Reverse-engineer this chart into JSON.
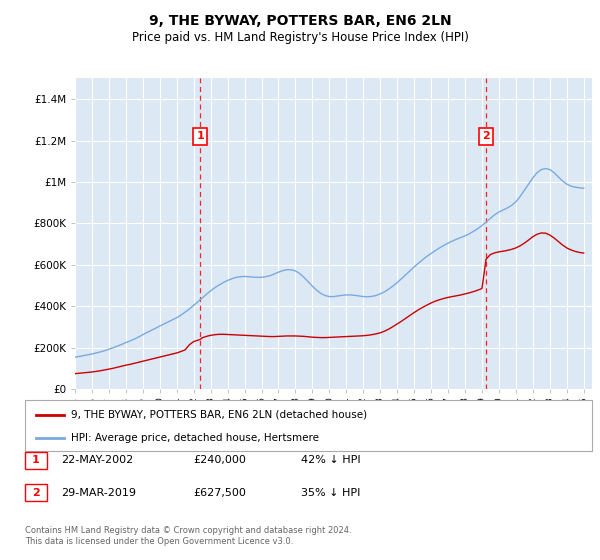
{
  "title": "9, THE BYWAY, POTTERS BAR, EN6 2LN",
  "subtitle": "Price paid vs. HM Land Registry's House Price Index (HPI)",
  "legend_line1": "9, THE BYWAY, POTTERS BAR, EN6 2LN (detached house)",
  "legend_line2": "HPI: Average price, detached house, Hertsmere",
  "footnote": "Contains HM Land Registry data © Crown copyright and database right 2024.\nThis data is licensed under the Open Government Licence v3.0.",
  "table_rows": [
    {
      "num": "1",
      "date": "22-MAY-2002",
      "price": "£240,000",
      "note": "42% ↓ HPI"
    },
    {
      "num": "2",
      "date": "29-MAR-2019",
      "price": "£627,500",
      "note": "35% ↓ HPI"
    }
  ],
  "transaction1_year": 2002.38,
  "transaction1_price": 240000,
  "transaction2_year": 2019.24,
  "transaction2_price": 627500,
  "background_color": "#dce9f5",
  "fig_bg_color": "#ffffff",
  "red_color": "#cc0000",
  "blue_color": "#7aaadd",
  "ylim": [
    0,
    1500000
  ],
  "yticks": [
    0,
    200000,
    400000,
    600000,
    800000,
    1000000,
    1200000,
    1400000
  ],
  "ytick_labels": [
    "£0",
    "£200K",
    "£400K",
    "£600K",
    "£800K",
    "£1M",
    "£1.2M",
    "£1.4M"
  ],
  "xlim_start": 1995,
  "xlim_end": 2025.5,
  "hpi_years": [
    1995.0,
    1995.25,
    1995.5,
    1995.75,
    1996.0,
    1996.25,
    1996.5,
    1996.75,
    1997.0,
    1997.25,
    1997.5,
    1997.75,
    1998.0,
    1998.25,
    1998.5,
    1998.75,
    1999.0,
    1999.25,
    1999.5,
    1999.75,
    2000.0,
    2000.25,
    2000.5,
    2000.75,
    2001.0,
    2001.25,
    2001.5,
    2001.75,
    2002.0,
    2002.25,
    2002.5,
    2002.75,
    2003.0,
    2003.25,
    2003.5,
    2003.75,
    2004.0,
    2004.25,
    2004.5,
    2004.75,
    2005.0,
    2005.25,
    2005.5,
    2005.75,
    2006.0,
    2006.25,
    2006.5,
    2006.75,
    2007.0,
    2007.25,
    2007.5,
    2007.75,
    2008.0,
    2008.25,
    2008.5,
    2008.75,
    2009.0,
    2009.25,
    2009.5,
    2009.75,
    2010.0,
    2010.25,
    2010.5,
    2010.75,
    2011.0,
    2011.25,
    2011.5,
    2011.75,
    2012.0,
    2012.25,
    2012.5,
    2012.75,
    2013.0,
    2013.25,
    2013.5,
    2013.75,
    2014.0,
    2014.25,
    2014.5,
    2014.75,
    2015.0,
    2015.25,
    2015.5,
    2015.75,
    2016.0,
    2016.25,
    2016.5,
    2016.75,
    2017.0,
    2017.25,
    2017.5,
    2017.75,
    2018.0,
    2018.25,
    2018.5,
    2018.75,
    2019.0,
    2019.25,
    2019.5,
    2019.75,
    2020.0,
    2020.25,
    2020.5,
    2020.75,
    2021.0,
    2021.25,
    2021.5,
    2021.75,
    2022.0,
    2022.25,
    2022.5,
    2022.75,
    2023.0,
    2023.25,
    2023.5,
    2023.75,
    2024.0,
    2024.25,
    2024.5,
    2024.75,
    2025.0
  ],
  "hpi_values": [
    155000,
    158000,
    162000,
    166000,
    170000,
    175000,
    180000,
    186000,
    193000,
    200000,
    208000,
    216000,
    225000,
    233000,
    242000,
    252000,
    263000,
    274000,
    284000,
    294000,
    305000,
    315000,
    325000,
    335000,
    345000,
    358000,
    372000,
    388000,
    405000,
    422000,
    440000,
    458000,
    475000,
    490000,
    503000,
    515000,
    525000,
    533000,
    540000,
    543000,
    544000,
    543000,
    541000,
    540000,
    540000,
    543000,
    548000,
    556000,
    565000,
    572000,
    577000,
    576000,
    571000,
    558000,
    540000,
    519000,
    497000,
    478000,
    462000,
    452000,
    447000,
    447000,
    450000,
    453000,
    455000,
    455000,
    453000,
    450000,
    447000,
    446000,
    448000,
    452000,
    460000,
    470000,
    483000,
    498000,
    515000,
    533000,
    552000,
    571000,
    590000,
    608000,
    625000,
    641000,
    655000,
    669000,
    682000,
    694000,
    705000,
    715000,
    724000,
    732000,
    740000,
    750000,
    762000,
    775000,
    790000,
    807000,
    825000,
    842000,
    855000,
    865000,
    875000,
    887000,
    905000,
    930000,
    960000,
    990000,
    1020000,
    1045000,
    1060000,
    1065000,
    1060000,
    1045000,
    1025000,
    1005000,
    990000,
    980000,
    975000,
    972000,
    970000
  ],
  "red_years": [
    1995.0,
    1995.25,
    1995.5,
    1995.75,
    1996.0,
    1996.25,
    1996.5,
    1996.75,
    1997.0,
    1997.25,
    1997.5,
    1997.75,
    1998.0,
    1998.25,
    1998.5,
    1998.75,
    1999.0,
    1999.25,
    1999.5,
    1999.75,
    2000.0,
    2000.25,
    2000.5,
    2000.75,
    2001.0,
    2001.25,
    2001.5,
    2001.75,
    2002.0,
    2002.38,
    2002.5,
    2002.75,
    2003.0,
    2003.25,
    2003.5,
    2003.75,
    2004.0,
    2004.25,
    2004.5,
    2004.75,
    2005.0,
    2005.25,
    2005.5,
    2005.75,
    2006.0,
    2006.25,
    2006.5,
    2006.75,
    2007.0,
    2007.25,
    2007.5,
    2007.75,
    2008.0,
    2008.25,
    2008.5,
    2008.75,
    2009.0,
    2009.25,
    2009.5,
    2009.75,
    2010.0,
    2010.25,
    2010.5,
    2010.75,
    2011.0,
    2011.25,
    2011.5,
    2011.75,
    2012.0,
    2012.25,
    2012.5,
    2012.75,
    2013.0,
    2013.25,
    2013.5,
    2013.75,
    2014.0,
    2014.25,
    2014.5,
    2014.75,
    2015.0,
    2015.25,
    2015.5,
    2015.75,
    2016.0,
    2016.25,
    2016.5,
    2016.75,
    2017.0,
    2017.25,
    2017.5,
    2017.75,
    2018.0,
    2018.25,
    2018.5,
    2018.75,
    2019.0,
    2019.24,
    2019.5,
    2019.75,
    2020.0,
    2020.25,
    2020.5,
    2020.75,
    2021.0,
    2021.25,
    2021.5,
    2021.75,
    2022.0,
    2022.25,
    2022.5,
    2022.75,
    2023.0,
    2023.25,
    2023.5,
    2023.75,
    2024.0,
    2024.25,
    2024.5,
    2024.75,
    2025.0
  ],
  "red_values": [
    75000,
    77000,
    79000,
    81000,
    83000,
    86000,
    89000,
    93000,
    97000,
    101000,
    106000,
    111000,
    116000,
    120000,
    125000,
    130000,
    135000,
    140000,
    145000,
    150000,
    155000,
    160000,
    165000,
    170000,
    175000,
    182000,
    190000,
    215000,
    230000,
    240000,
    248000,
    255000,
    260000,
    263000,
    265000,
    265000,
    264000,
    263000,
    262000,
    261000,
    260000,
    259000,
    258000,
    257000,
    256000,
    255000,
    254000,
    254000,
    255000,
    256000,
    257000,
    257000,
    257000,
    256000,
    255000,
    253000,
    251000,
    250000,
    249000,
    249000,
    250000,
    251000,
    252000,
    253000,
    254000,
    255000,
    256000,
    257000,
    258000,
    260000,
    263000,
    267000,
    272000,
    280000,
    290000,
    302000,
    315000,
    328000,
    342000,
    356000,
    370000,
    383000,
    395000,
    406000,
    416000,
    425000,
    432000,
    438000,
    443000,
    447000,
    451000,
    455000,
    460000,
    465000,
    471000,
    478000,
    486000,
    627500,
    650000,
    658000,
    663000,
    666000,
    670000,
    675000,
    682000,
    692000,
    705000,
    720000,
    736000,
    748000,
    754000,
    753000,
    744000,
    730000,
    713000,
    696000,
    682000,
    672000,
    665000,
    660000,
    657000
  ]
}
